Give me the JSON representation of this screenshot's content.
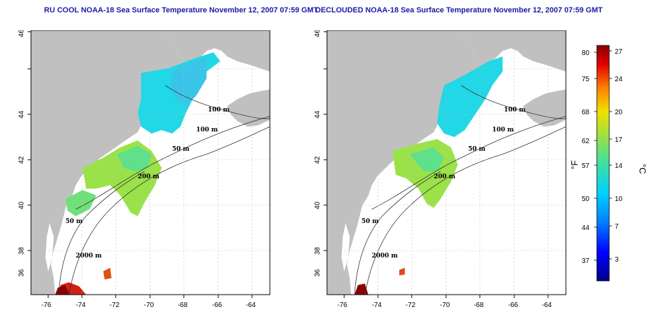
{
  "panels": [
    {
      "title": "RU COOL NOAA-18 Sea Surface Temperature November 12, 2007 07:59 GMT",
      "contour_labels": [
        "100 m",
        "100 m",
        "50 m",
        "200 m",
        "50 m",
        "2000 m"
      ]
    },
    {
      "title": "DECLOUDED NOAA-18 Sea Surface Temperature November 12, 2007 07:59 GMT",
      "contour_labels": [
        "100 m",
        "100 m",
        "50 m",
        "200 m",
        "50 m",
        "2000 m"
      ]
    }
  ],
  "axes": {
    "x_ticks": [
      "-76",
      "-74",
      "-72",
      "-70",
      "-68",
      "-66",
      "-64"
    ],
    "y_ticks": [
      "36",
      "38",
      "40",
      "42",
      "44",
      "46"
    ]
  },
  "colorbar": {
    "fahrenheit_label": "°F",
    "celsius_label": "°C",
    "fahrenheit_ticks": [
      "80",
      "75",
      "68",
      "62",
      "57",
      "50",
      "44",
      "37"
    ],
    "celsius_ticks": [
      "27",
      "24",
      "20",
      "17",
      "14",
      "10",
      "7",
      "3"
    ]
  },
  "colors": {
    "land": "#c0c0c0",
    "title": "#1a1aa6",
    "cold": "#00008b",
    "warm": "#8b0000"
  }
}
